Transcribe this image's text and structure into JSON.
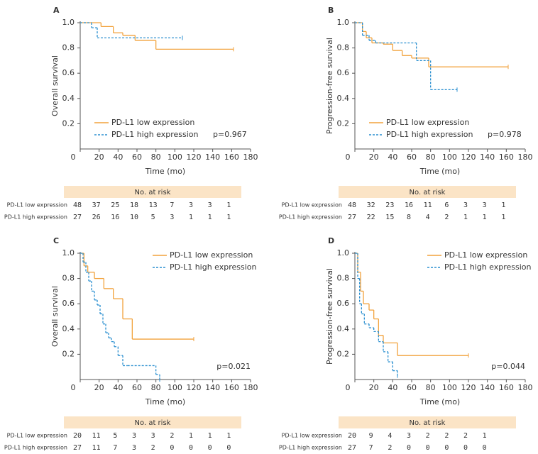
{
  "chart_data": [
    {
      "type": "step",
      "label": "A",
      "y_label": "Overall survival",
      "x_label": "Time (mo)",
      "p_value": "p=0.967",
      "legend_loc": "lower left",
      "xlim": [
        0,
        180
      ],
      "xticks": [
        0,
        20,
        40,
        60,
        80,
        100,
        120,
        140,
        160,
        180
      ],
      "ylim": [
        0,
        1
      ],
      "yticks": [
        0.2,
        0.4,
        0.6,
        0.8,
        {
          "value": 1,
          "label": "1.0"
        }
      ],
      "series": [
        {
          "name": "PD-L1 low expression",
          "color": "#f2a23c",
          "linestyle": "solid",
          "x": [
            0,
            22,
            35,
            45,
            58,
            80,
            162
          ],
          "values": [
            1,
            0.97,
            0.92,
            0.9,
            0.86,
            0.79,
            0.79
          ]
        },
        {
          "name": "PD-L1 high expression",
          "color": "#2a8fd0",
          "linestyle": "dashed",
          "x": [
            0,
            12,
            18,
            108
          ],
          "values": [
            1,
            0.96,
            0.88,
            0.88
          ]
        }
      ],
      "risk_table": {
        "title": "No. at risk",
        "rows": [
          {
            "label": "PD-L1 low expression",
            "counts": [
              48,
              37,
              25,
              18,
              13,
              7,
              3,
              3,
              1
            ]
          },
          {
            "label": "PD-L1 high expression",
            "counts": [
              27,
              26,
              16,
              10,
              5,
              3,
              1,
              1,
              1
            ]
          }
        ]
      }
    },
    {
      "type": "step",
      "label": "B",
      "y_label": "Progression-free survival",
      "x_label": "Time (mo)",
      "p_value": "p=0.978",
      "legend_loc": "lower left",
      "xlim": [
        0,
        180
      ],
      "xticks": [
        0,
        20,
        40,
        60,
        80,
        100,
        120,
        140,
        160,
        180
      ],
      "ylim": [
        0,
        1
      ],
      "yticks": [
        0.2,
        0.4,
        0.6,
        0.8,
        {
          "value": 1,
          "label": "1.0"
        }
      ],
      "series": [
        {
          "name": "PD-L1 low expression",
          "color": "#f2a23c",
          "linestyle": "solid",
          "x": [
            0,
            8,
            12,
            18,
            30,
            40,
            50,
            60,
            78,
            162
          ],
          "values": [
            1,
            0.93,
            0.88,
            0.84,
            0.83,
            0.78,
            0.74,
            0.72,
            0.65,
            0.65
          ]
        },
        {
          "name": "PD-L1 high expression",
          "color": "#2a8fd0",
          "linestyle": "dashed",
          "x": [
            0,
            8,
            15,
            22,
            65,
            80,
            108
          ],
          "values": [
            1,
            0.9,
            0.86,
            0.84,
            0.7,
            0.47,
            0.47
          ]
        }
      ],
      "risk_table": {
        "title": "No. at risk",
        "rows": [
          {
            "label": "PD-L1 low expression",
            "counts": [
              48,
              32,
              23,
              16,
              11,
              6,
              3,
              3,
              1
            ]
          },
          {
            "label": "PD-L1 high expression",
            "counts": [
              27,
              22,
              15,
              8,
              4,
              2,
              1,
              1,
              1
            ]
          }
        ]
      }
    },
    {
      "type": "step",
      "label": "C",
      "y_label": "Overall survival",
      "x_label": "Time (mo)",
      "p_value": "p=0.021",
      "legend_loc": "upper right",
      "xlim": [
        0,
        180
      ],
      "xticks": [
        0,
        20,
        40,
        60,
        80,
        100,
        120,
        140,
        160,
        180
      ],
      "ylim": [
        0,
        1
      ],
      "yticks": [
        0.2,
        0.4,
        0.6,
        0.8,
        {
          "value": 1,
          "label": "1.0"
        }
      ],
      "series": [
        {
          "name": "PD-L1 low expression",
          "color": "#f2a23c",
          "linestyle": "solid",
          "x": [
            0,
            4,
            8,
            15,
            25,
            35,
            45,
            55,
            120
          ],
          "values": [
            1,
            0.9,
            0.85,
            0.8,
            0.72,
            0.64,
            0.48,
            0.32,
            0.32
          ]
        },
        {
          "name": "PD-L1 high expression",
          "color": "#2a8fd0",
          "linestyle": "dashed",
          "x": [
            0,
            3,
            6,
            9,
            12,
            15,
            18,
            21,
            24,
            27,
            30,
            33,
            36,
            40,
            45,
            50,
            80,
            84
          ],
          "values": [
            1,
            0.93,
            0.85,
            0.78,
            0.7,
            0.63,
            0.59,
            0.52,
            0.44,
            0.37,
            0.33,
            0.3,
            0.26,
            0.19,
            0.11,
            0.11,
            0.04,
            0
          ]
        }
      ],
      "risk_table": {
        "title": "No. at risk",
        "rows": [
          {
            "label": "PD-L1 low expression",
            "counts": [
              20,
              11,
              5,
              3,
              3,
              2,
              1,
              1,
              1
            ]
          },
          {
            "label": "PD-L1 high expression",
            "counts": [
              27,
              11,
              7,
              3,
              2,
              0,
              0,
              0,
              0
            ]
          }
        ]
      }
    },
    {
      "type": "step",
      "label": "D",
      "y_label": "Progression-free survival",
      "x_label": "Time (mo)",
      "p_value": "p=0.044",
      "legend_loc": "upper right",
      "xlim": [
        0,
        180
      ],
      "xticks": [
        0,
        20,
        40,
        60,
        80,
        100,
        120,
        140,
        160,
        180
      ],
      "ylim": [
        0,
        1
      ],
      "yticks": [
        0.2,
        0.4,
        0.6,
        0.8,
        {
          "value": 1,
          "label": "1.0"
        }
      ],
      "series": [
        {
          "name": "PD-L1 low expression",
          "color": "#f2a23c",
          "linestyle": "solid",
          "x": [
            0,
            3,
            6,
            9,
            15,
            20,
            25,
            30,
            45,
            120
          ],
          "values": [
            1,
            0.85,
            0.7,
            0.6,
            0.55,
            0.48,
            0.35,
            0.29,
            0.19,
            0.19
          ]
        },
        {
          "name": "PD-L1 high expression",
          "color": "#2a8fd0",
          "linestyle": "dashed",
          "x": [
            0,
            3,
            5,
            7,
            10,
            15,
            20,
            25,
            30,
            35,
            40,
            45
          ],
          "values": [
            1,
            0.8,
            0.6,
            0.52,
            0.44,
            0.41,
            0.38,
            0.3,
            0.22,
            0.14,
            0.07,
            0.03
          ]
        }
      ],
      "risk_table": {
        "title": "No. at risk",
        "rows": [
          {
            "label": "PD-L1 low expression",
            "counts": [
              20,
              9,
              4,
              3,
              2,
              2,
              2,
              1
            ]
          },
          {
            "label": "PD-L1 high expression",
            "counts": [
              27,
              7,
              2,
              0,
              0,
              0,
              0,
              0
            ]
          }
        ]
      }
    }
  ]
}
